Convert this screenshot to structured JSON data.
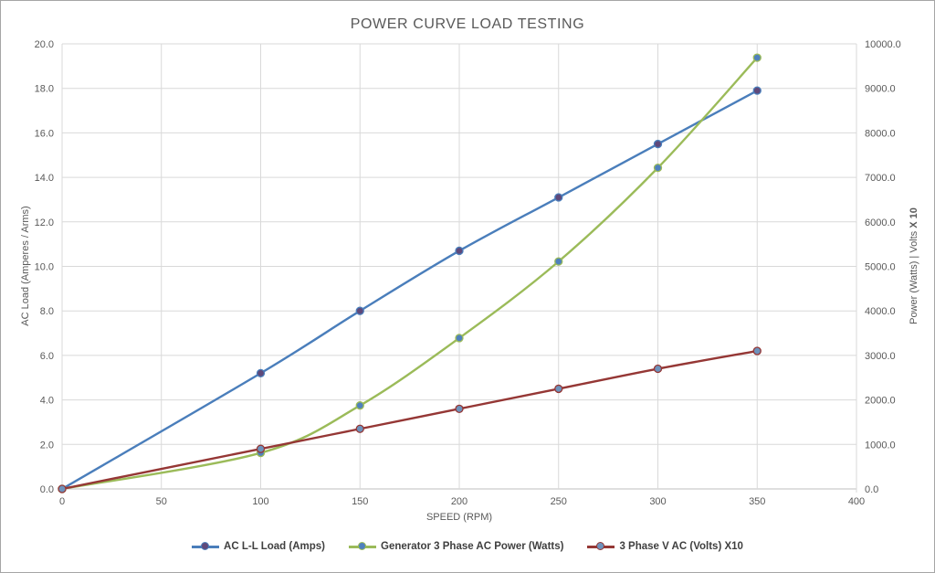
{
  "chart_data": {
    "type": "line",
    "title": "POWER CURVE LOAD TESTING",
    "xlabel": "SPEED (RPM)",
    "ylabel_left": "AC Load (Amperes / Arms)",
    "ylabel_right": "Power (Watts) | Volts",
    "ylabel_right_bold": "X 10",
    "x": [
      0,
      100,
      150,
      200,
      250,
      300,
      350
    ],
    "x_axis": {
      "min": 0,
      "max": 400,
      "step": 50
    },
    "y_axis_left": {
      "min": 0,
      "max": 20,
      "step": 2,
      "decimals": 1
    },
    "y_axis_right": {
      "min": 0,
      "max": 10000,
      "step": 1000,
      "decimals": 1
    },
    "grid": true,
    "legend_position": "bottom",
    "series": [
      {
        "name": "AC L-L Load (Amps)",
        "axis": "left",
        "color": "#4a7ebb",
        "marker_fill": "#5f497a",
        "values": [
          0.0,
          5.2,
          8.0,
          10.7,
          13.1,
          15.5,
          17.9
        ]
      },
      {
        "name": "Generator 3 Phase AC Power (Watts)",
        "axis": "right",
        "color": "#9bbb59",
        "marker_fill": "#4f81bd",
        "values": [
          0,
          810,
          1875,
          3390,
          5110,
          7215,
          9690
        ]
      },
      {
        "name": "3 Phase V AC  (Volts) X10",
        "axis": "right",
        "color": "#953735",
        "marker_fill": "#6d92bc",
        "values": [
          0,
          900,
          1350,
          1800,
          2250,
          2700,
          3100
        ]
      }
    ]
  },
  "colors": {
    "grid": "#d9d9d9",
    "axis_line": "#bfbfbf",
    "tick_text": "#595959"
  }
}
